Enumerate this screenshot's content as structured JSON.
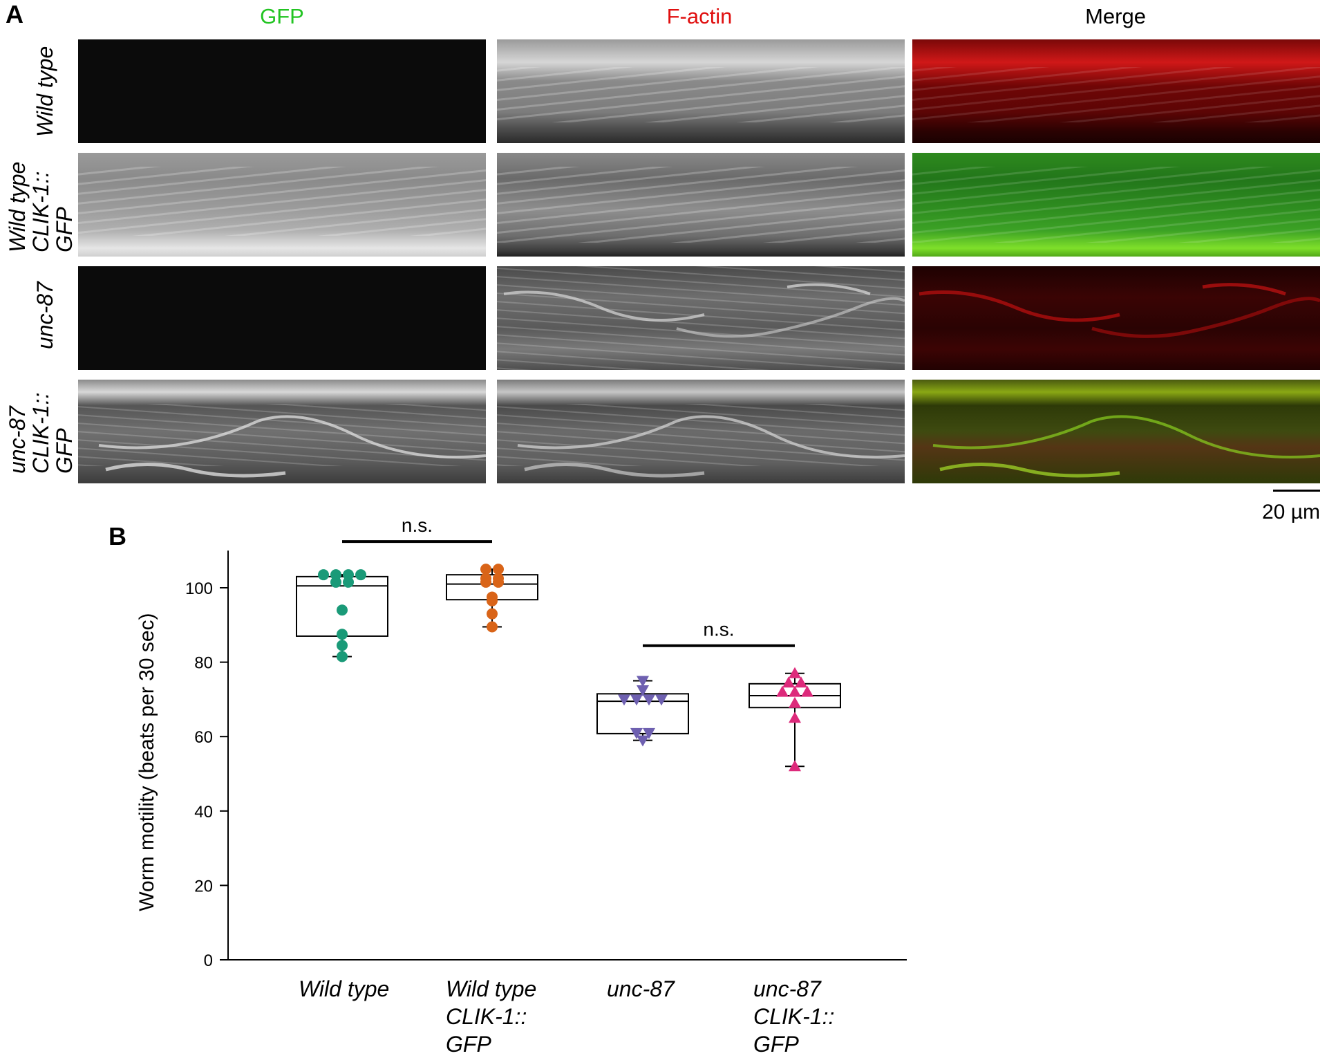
{
  "panel_a": {
    "letter": "A",
    "columns": [
      "GFP",
      "F-actin",
      "Merge"
    ],
    "column_colors": [
      "#22c422",
      "#e01010",
      "#000000"
    ],
    "rows": [
      {
        "label_lines": [
          "Wild type"
        ]
      },
      {
        "label_lines": [
          "Wild type",
          "CLIK-1::",
          "GFP"
        ]
      },
      {
        "label_lines": [
          "unc-87"
        ]
      },
      {
        "label_lines": [
          "unc-87",
          "CLIK-1::",
          "GFP"
        ]
      }
    ],
    "scale_bar_label": "20 µm"
  },
  "panel_b": {
    "letter": "B",
    "significance_labels": [
      "n.s.",
      "n.s."
    ]
  },
  "chart_data": {
    "type": "box",
    "ylabel": "Worm motility (beats per 30 sec)",
    "xlabel": "",
    "ylim": [
      0,
      110
    ],
    "yticks": [
      0,
      20,
      40,
      60,
      80,
      100
    ],
    "categories": [
      [
        "Wild type"
      ],
      [
        "Wild type",
        "CLIK-1::",
        "GFP"
      ],
      [
        "unc-87"
      ],
      [
        "unc-87",
        "CLIK-1::",
        "GFP"
      ]
    ],
    "series": [
      {
        "color": "#1a9a78",
        "marker": "circle",
        "box": {
          "q1": 87,
          "median": 100.5,
          "q3": 103,
          "whisker_low": 81.5,
          "whisker_high": 103.5
        },
        "points": [
          103.5,
          103.5,
          103.5,
          103.5,
          101.5,
          101.5,
          94,
          87.5,
          84.5,
          81.5
        ]
      },
      {
        "color": "#d96418",
        "marker": "circle",
        "box": {
          "q1": 96.8,
          "median": 101,
          "q3": 103.5,
          "whisker_low": 89.5,
          "whisker_high": 105
        },
        "points": [
          105,
          105,
          102.5,
          102.5,
          101.5,
          101.5,
          97.5,
          96.5,
          93,
          89.5
        ]
      },
      {
        "color": "#6e60b0",
        "marker": "triangle-down",
        "box": {
          "q1": 60.8,
          "median": 69.5,
          "q3": 71.5,
          "whisker_low": 59,
          "whisker_high": 75
        },
        "points": [
          75,
          72.5,
          70,
          70,
          70,
          70,
          61,
          61,
          59
        ]
      },
      {
        "color": "#dd2a7b",
        "marker": "triangle-up",
        "box": {
          "q1": 67.8,
          "median": 71,
          "q3": 74.2,
          "whisker_low": 52,
          "whisker_high": 77
        },
        "points": [
          77,
          74.5,
          74.5,
          72,
          72,
          72,
          69,
          65,
          52
        ]
      }
    ],
    "comparisons": [
      {
        "groups": [
          0,
          1
        ],
        "label": "n.s."
      },
      {
        "groups": [
          2,
          3
        ],
        "label": "n.s."
      }
    ],
    "grid": false,
    "legend": "none"
  }
}
